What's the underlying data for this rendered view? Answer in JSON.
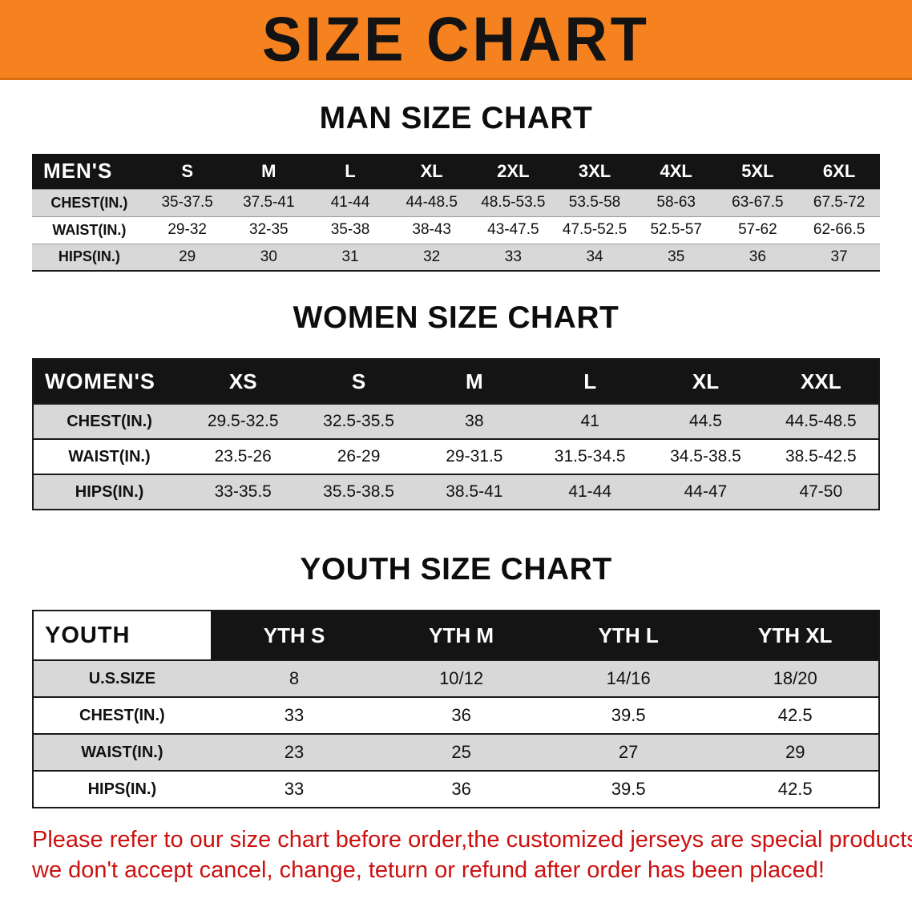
{
  "banner": {
    "title": "SIZE CHART"
  },
  "sections": [
    {
      "heading": "MAN SIZE CHART",
      "table": {
        "header": [
          "MEN'S",
          "S",
          "M",
          "L",
          "XL",
          "2XL",
          "3XL",
          "4XL",
          "5XL",
          "6XL"
        ],
        "rows": [
          [
            "CHEST(IN.)",
            "35-37.5",
            "37.5-41",
            "41-44",
            "44-48.5",
            "48.5-53.5",
            "53.5-58",
            "58-63",
            "63-67.5",
            "67.5-72"
          ],
          [
            "WAIST(IN.)",
            "29-32",
            "32-35",
            "35-38",
            "38-43",
            "43-47.5",
            "47.5-52.5",
            "52.5-57",
            "57-62",
            "62-66.5"
          ],
          [
            "HIPS(IN.)",
            "29",
            "30",
            "31",
            "32",
            "33",
            "34",
            "35",
            "36",
            "37"
          ]
        ]
      }
    },
    {
      "heading": "WOMEN SIZE CHART",
      "table": {
        "header": [
          "WOMEN'S",
          "XS",
          "S",
          "M",
          "L",
          "XL",
          "XXL"
        ],
        "rows": [
          [
            "CHEST(IN.)",
            "29.5-32.5",
            "32.5-35.5",
            "38",
            "41",
            "44.5",
            "44.5-48.5"
          ],
          [
            "WAIST(IN.)",
            "23.5-26",
            "26-29",
            "29-31.5",
            "31.5-34.5",
            "34.5-38.5",
            "38.5-42.5"
          ],
          [
            "HIPS(IN.)",
            "33-35.5",
            "35.5-38.5",
            "38.5-41",
            "41-44",
            "44-47",
            "47-50"
          ]
        ]
      }
    },
    {
      "heading": "YOUTH SIZE CHART",
      "table": {
        "header": [
          "YOUTH",
          "YTH S",
          "YTH M",
          "YTH L",
          "YTH XL"
        ],
        "rows": [
          [
            "U.S.SIZE",
            "8",
            "10/12",
            "14/16",
            "18/20"
          ],
          [
            "CHEST(IN.)",
            "33",
            "36",
            "39.5",
            "42.5"
          ],
          [
            "WAIST(IN.)",
            "23",
            "25",
            "27",
            "29"
          ],
          [
            "HIPS(IN.)",
            "33",
            "36",
            "39.5",
            "42.5"
          ]
        ]
      }
    }
  ],
  "disclaimer": {
    "line1": "Please refer to our size chart before order,the customized jerseys are special products,",
    "line2": "we don't accept cancel, change, teturn or refund after order has been placed!"
  },
  "colors": {
    "banner_bg": "#f5821f",
    "header_bg": "#141414",
    "row_alt": "#d8d8d8",
    "disclaimer": "#cc1111"
  }
}
